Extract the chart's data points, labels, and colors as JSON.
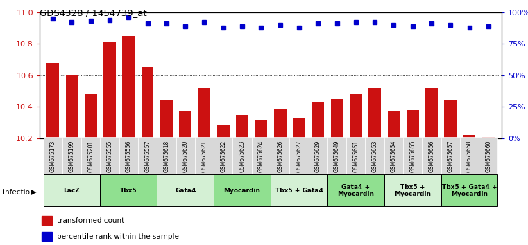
{
  "title": "GDS4328 / 1454739_at",
  "samples": [
    "GSM675173",
    "GSM675199",
    "GSM675201",
    "GSM675555",
    "GSM675556",
    "GSM675557",
    "GSM675618",
    "GSM675620",
    "GSM675621",
    "GSM675622",
    "GSM675623",
    "GSM675624",
    "GSM675626",
    "GSM675627",
    "GSM675629",
    "GSM675649",
    "GSM675651",
    "GSM675653",
    "GSM675654",
    "GSM675655",
    "GSM675656",
    "GSM675657",
    "GSM675658",
    "GSM675660"
  ],
  "bar_values": [
    10.68,
    10.6,
    10.48,
    10.81,
    10.85,
    10.65,
    10.44,
    10.37,
    10.52,
    10.29,
    10.35,
    10.32,
    10.39,
    10.33,
    10.43,
    10.45,
    10.48,
    10.52,
    10.37,
    10.38,
    10.52,
    10.44,
    10.22,
    10.21
  ],
  "dot_values": [
    95,
    92,
    93,
    94,
    96,
    91,
    91,
    89,
    92,
    88,
    89,
    88,
    90,
    88,
    91,
    91,
    92,
    92,
    90,
    89,
    91,
    90,
    88,
    89
  ],
  "ylim_left": [
    10.2,
    11.0
  ],
  "ylim_right": [
    0,
    100
  ],
  "yticks_left": [
    10.2,
    10.4,
    10.6,
    10.8,
    11.0
  ],
  "yticks_right": [
    0,
    25,
    50,
    75,
    100
  ],
  "ytick_labels_right": [
    "0%",
    "25%",
    "50%",
    "75%",
    "100%"
  ],
  "bar_color": "#cc1111",
  "dot_color": "#0000cc",
  "groups": [
    {
      "label": "LacZ",
      "start": 0,
      "end": 3,
      "color": "#d4f0d4"
    },
    {
      "label": "Tbx5",
      "start": 3,
      "end": 6,
      "color": "#90e090"
    },
    {
      "label": "Gata4",
      "start": 6,
      "end": 9,
      "color": "#d4f0d4"
    },
    {
      "label": "Myocardin",
      "start": 9,
      "end": 12,
      "color": "#90e090"
    },
    {
      "label": "Tbx5 + Gata4",
      "start": 12,
      "end": 15,
      "color": "#d4f0d4"
    },
    {
      "label": "Gata4 +\nMyocardin",
      "start": 15,
      "end": 18,
      "color": "#90e090"
    },
    {
      "label": "Tbx5 +\nMyocardin",
      "start": 18,
      "end": 21,
      "color": "#d4f0d4"
    },
    {
      "label": "Tbx5 + Gata4 +\nMyocardin",
      "start": 21,
      "end": 24,
      "color": "#90e090"
    }
  ],
  "infection_label": "infection",
  "bar_color_legend": "#cc1111",
  "dot_color_legend": "#0000cc",
  "tick_bg": "#d8d8d8"
}
